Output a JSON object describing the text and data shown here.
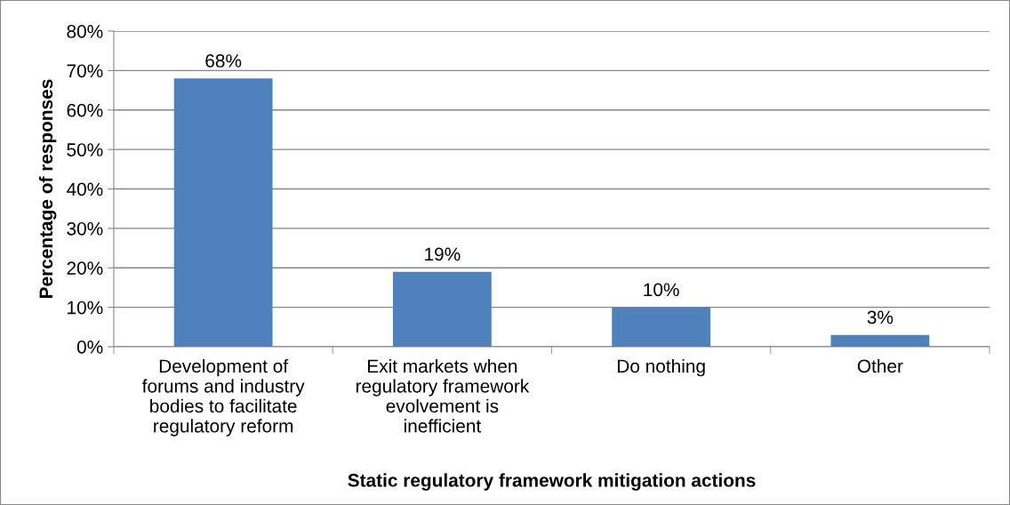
{
  "chart_data": {
    "type": "bar",
    "xlabel": "Static regulatory framework mitigation actions",
    "ylabel": "Percentage of responses",
    "categories": [
      "Development of\nforums and industry\nbodies to facilitate\nregulatory reform",
      "Exit markets when\nregulatory framework\nevolvement is\ninefficient",
      "Do nothing",
      "Other"
    ],
    "values": [
      68,
      19,
      10,
      3
    ],
    "color": "#4f81bd",
    "value_labels": [
      "68%",
      "19%",
      "10%",
      "3%"
    ],
    "ylim": [
      0,
      80
    ],
    "yticks": [
      {
        "value": 0,
        "label": "0%"
      },
      {
        "value": 10,
        "label": "10%"
      },
      {
        "value": 20,
        "label": "20%"
      },
      {
        "value": 30,
        "label": "30%"
      },
      {
        "value": 40,
        "label": "40%"
      },
      {
        "value": 50,
        "label": "50%"
      },
      {
        "value": 60,
        "label": "60%"
      },
      {
        "value": 70,
        "label": "70%"
      },
      {
        "value": 80,
        "label": "80%"
      }
    ],
    "grid": "y",
    "legend": false
  }
}
